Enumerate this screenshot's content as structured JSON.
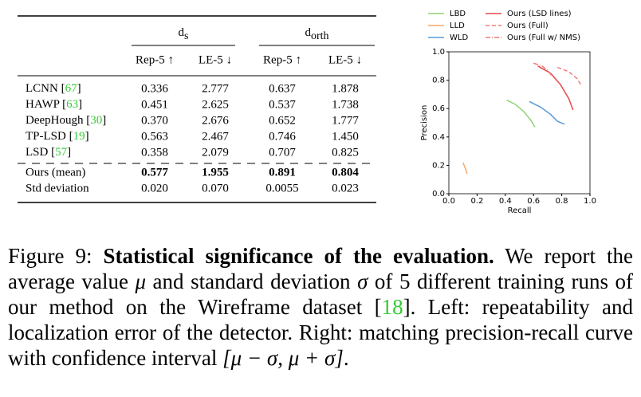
{
  "table": {
    "group_headers": [
      {
        "symbol": "d",
        "subscript": "s"
      },
      {
        "symbol": "d",
        "subscript": "orth"
      }
    ],
    "columns": [
      "Rep-5 ↑",
      "LE-5 ↓",
      "Rep-5 ↑",
      "LE-5 ↓"
    ],
    "rows": [
      {
        "label": [
          "LCNN [",
          "67",
          "]"
        ],
        "values": [
          "0.336",
          "2.777",
          "0.637",
          "1.878"
        ]
      },
      {
        "label": [
          "HAWP [",
          "63",
          "]"
        ],
        "values": [
          "0.451",
          "2.625",
          "0.537",
          "1.738"
        ]
      },
      {
        "label": [
          "DeepHough [",
          "30",
          "]"
        ],
        "values": [
          "0.370",
          "2.676",
          "0.652",
          "1.777"
        ]
      },
      {
        "label": [
          "TP-LSD [",
          "19",
          "]"
        ],
        "values": [
          "0.563",
          "2.467",
          "0.746",
          "1.450"
        ]
      },
      {
        "label": [
          "LSD [",
          "57",
          "]"
        ],
        "values": [
          "0.358",
          "2.079",
          "0.707",
          "0.825"
        ]
      }
    ],
    "summary_rows": [
      {
        "label": "Ours (mean)",
        "values": [
          "0.577",
          "1.955",
          "0.891",
          "0.804"
        ]
      },
      {
        "label": "Std deviation",
        "values": [
          "0.020",
          "0.070",
          "0.0055",
          "0.023"
        ]
      }
    ]
  },
  "chart_data": {
    "type": "line",
    "xlabel": "Recall",
    "ylabel": "Precision",
    "xlim": [
      0,
      1
    ],
    "ylim": [
      0,
      1
    ],
    "xticks": [
      {
        "value": 0,
        "label": "0.0"
      },
      0.2,
      0.4,
      0.6,
      0.8,
      {
        "value": 1,
        "label": "1.0"
      }
    ],
    "yticks": [
      {
        "value": 0,
        "label": "0.0"
      },
      0.2,
      0.4,
      0.6,
      0.8,
      {
        "value": 1,
        "label": "1.0"
      }
    ],
    "series": [
      {
        "name": "LBD",
        "color": "#8fd175",
        "linestyle": "-",
        "x": [
          0.41,
          0.47,
          0.53,
          0.58,
          0.61
        ],
        "values": [
          0.66,
          0.63,
          0.58,
          0.52,
          0.47
        ]
      },
      {
        "name": "LLD",
        "color": "#f5a86a",
        "linestyle": "-",
        "x": [
          0.1,
          0.12,
          0.13
        ],
        "values": [
          0.22,
          0.17,
          0.14
        ]
      },
      {
        "name": "WLD",
        "color": "#5b9bd5",
        "linestyle": "-",
        "x": [
          0.57,
          0.65,
          0.72,
          0.77,
          0.82
        ],
        "values": [
          0.65,
          0.61,
          0.56,
          0.51,
          0.49
        ]
      },
      {
        "name": "Ours (LSD lines)",
        "color": "#e8474a",
        "linestyle": "-",
        "x": [
          0.63,
          0.72,
          0.79,
          0.85,
          0.88
        ],
        "values": [
          0.9,
          0.85,
          0.77,
          0.67,
          0.59
        ]
      },
      {
        "name": "Ours (Full)",
        "color": "#f07b7b",
        "linestyle": "--",
        "x": [
          0.77,
          0.85,
          0.91,
          0.94
        ],
        "values": [
          0.89,
          0.86,
          0.81,
          0.76
        ]
      },
      {
        "name": "Ours (Full w/ NMS)",
        "color": "#f07b7b",
        "linestyle": "-.",
        "x": [
          0.6,
          0.66,
          0.7,
          0.73
        ],
        "values": [
          0.92,
          0.9,
          0.87,
          0.83
        ]
      }
    ]
  },
  "caption": {
    "label": "Figure 9:",
    "title": "Statistical significance of the evaluation.",
    "body": [
      "We report the average value ",
      "μ",
      " and standard deviation ",
      "σ",
      " of 5 different training runs of our method on the Wireframe dataset [",
      "18",
      "]. Left: repeatability and localization error of the detector. Right: matching precision-recall curve with confidence interval ",
      "[μ − σ, μ + σ]",
      "."
    ]
  }
}
